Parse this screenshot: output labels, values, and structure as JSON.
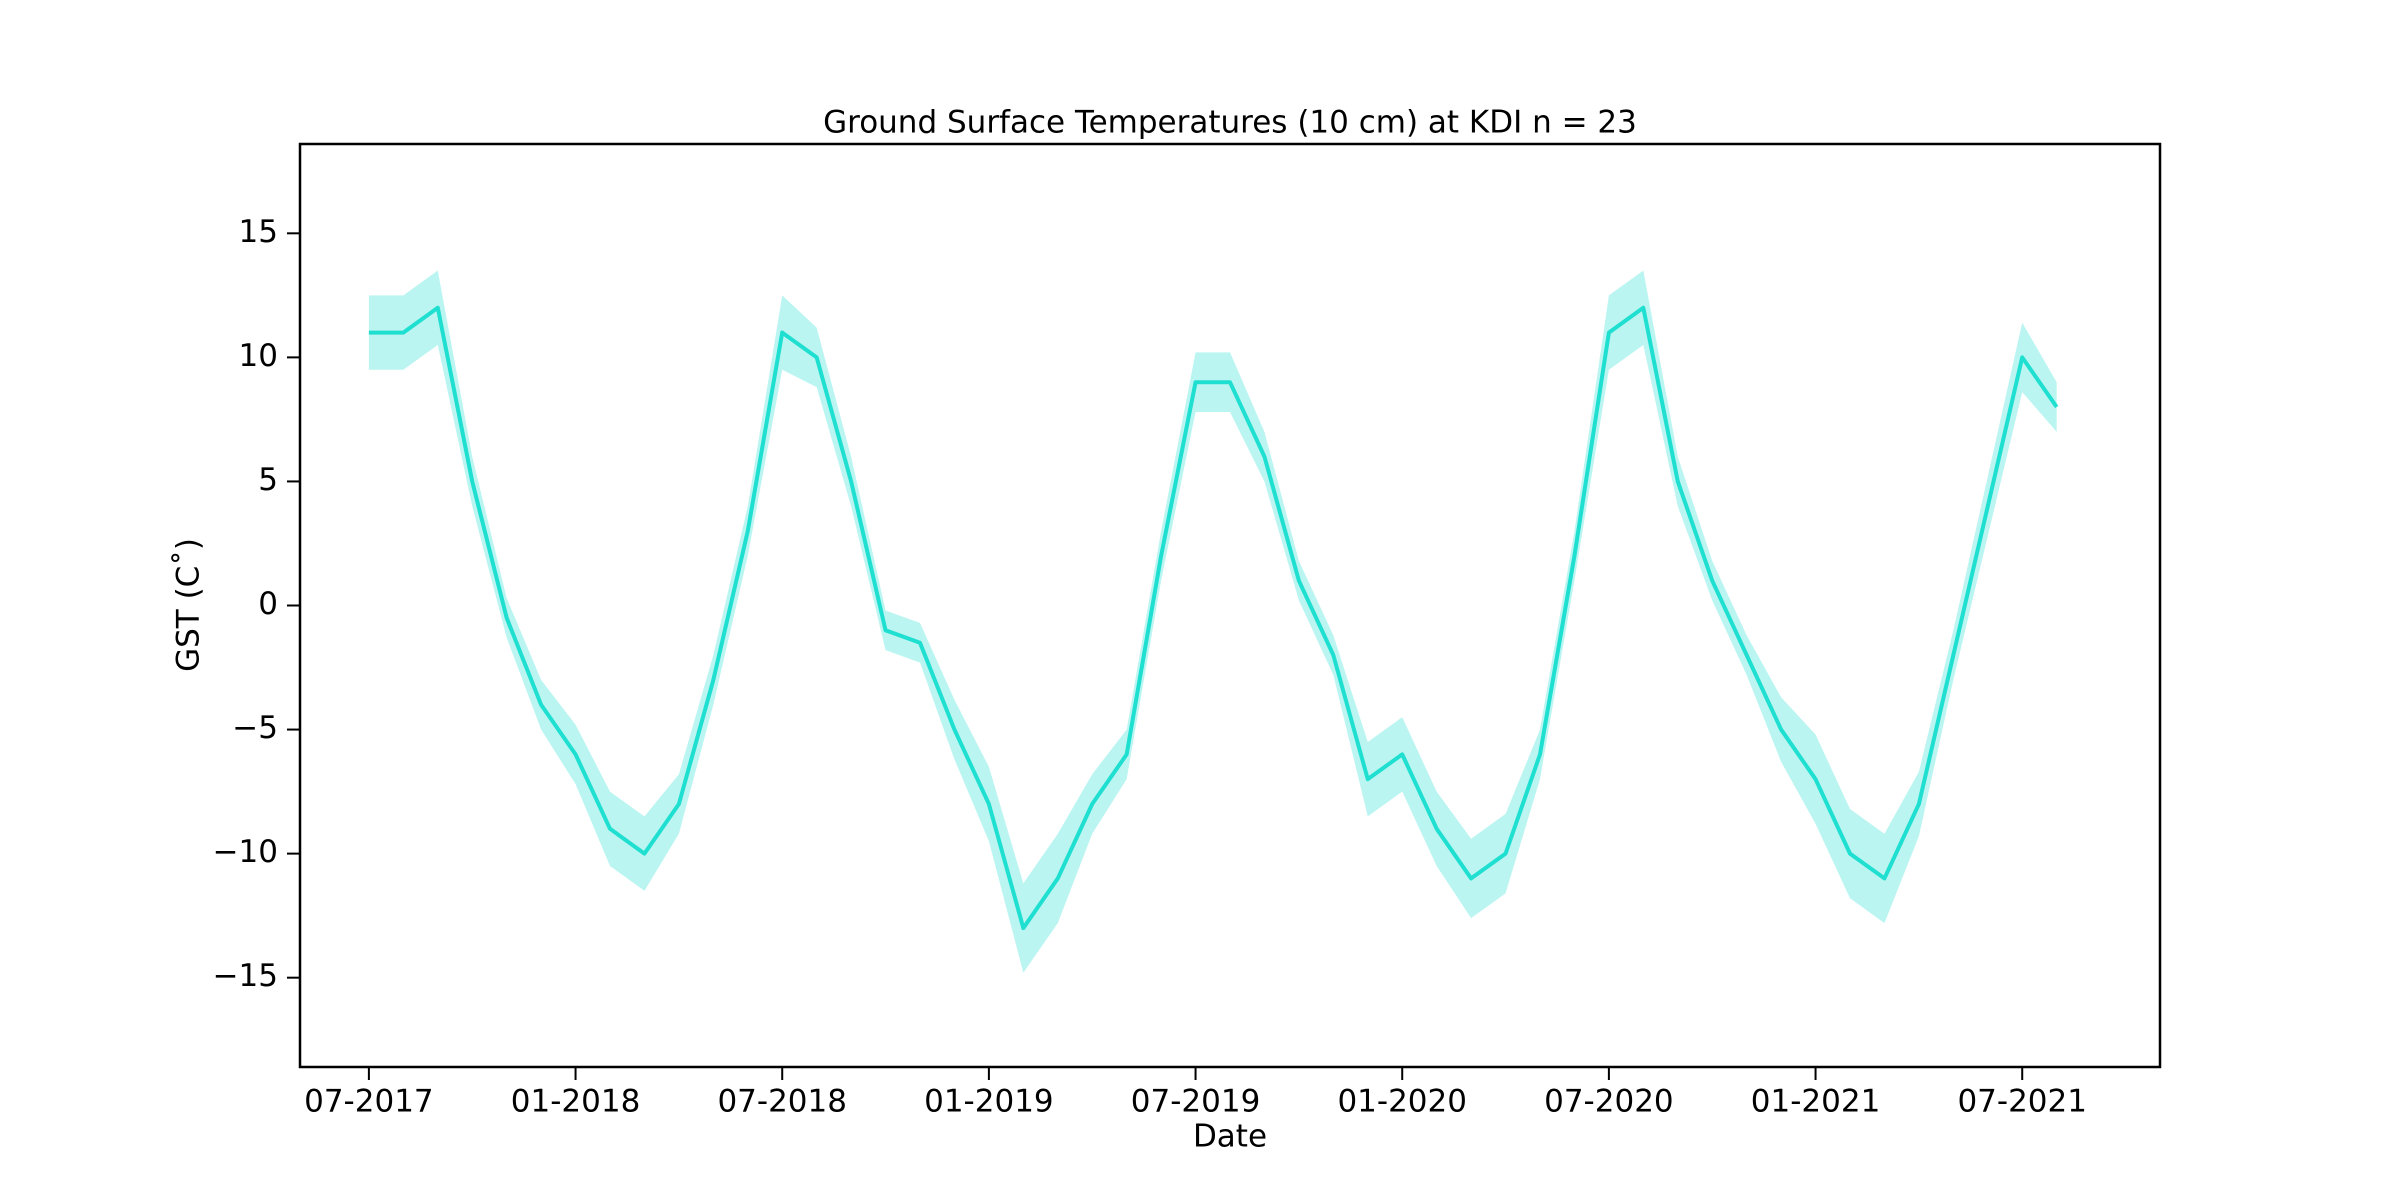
{
  "chart_data": {
    "type": "line",
    "title": "Ground Surface Temperatures (10 cm) at KDI n = 23",
    "xlabel": "Date",
    "ylabel": "GST (C˚)",
    "x": [
      "2017-07",
      "2017-08",
      "2017-09",
      "2017-10",
      "2017-11",
      "2017-12",
      "2018-01",
      "2018-02",
      "2018-03",
      "2018-04",
      "2018-05",
      "2018-06",
      "2018-07",
      "2018-08",
      "2018-09",
      "2018-10",
      "2018-11",
      "2018-12",
      "2019-01",
      "2019-02",
      "2019-03",
      "2019-04",
      "2019-05",
      "2019-06",
      "2019-07",
      "2019-08",
      "2019-09",
      "2019-10",
      "2019-11",
      "2019-12",
      "2020-01",
      "2020-02",
      "2020-03",
      "2020-04",
      "2020-05",
      "2020-06",
      "2020-07",
      "2020-08",
      "2020-09",
      "2020-10",
      "2020-11",
      "2020-12",
      "2021-01",
      "2021-02",
      "2021-03",
      "2021-04",
      "2021-05",
      "2021-06",
      "2021-07",
      "2021-08"
    ],
    "series": [
      {
        "color": "#1fdfd0",
        "values": [
          11,
          11,
          12,
          5,
          -0.5,
          -4,
          -6,
          -9,
          -10,
          -8,
          -3,
          3,
          11,
          10,
          5,
          -1,
          -1.5,
          -5,
          -8,
          -13,
          -11,
          -8,
          -6,
          2,
          9,
          9,
          6,
          1,
          -2,
          -7,
          -6,
          -9,
          -11,
          -10,
          -6,
          2,
          11,
          12,
          5,
          1,
          -2,
          -5,
          -7,
          -10,
          -11,
          -8,
          -2,
          4,
          10,
          8
        ],
        "lower": [
          9.5,
          9.5,
          10.5,
          4,
          -1.3,
          -5,
          -7.2,
          -10.5,
          -11.5,
          -9.2,
          -4,
          2,
          9.5,
          8.8,
          4,
          -1.8,
          -2.3,
          -6.2,
          -9.5,
          -14.8,
          -12.8,
          -9.2,
          -7,
          1,
          7.8,
          7.8,
          5,
          0.2,
          -2.8,
          -8.5,
          -7.5,
          -10.5,
          -12.6,
          -11.6,
          -7,
          1,
          9.5,
          10.5,
          4,
          0.2,
          -2.8,
          -6.3,
          -8.8,
          -11.8,
          -12.8,
          -9.3,
          -3,
          2.8,
          8.6,
          7
        ],
        "upper": [
          12.5,
          12.5,
          13.5,
          6,
          0.3,
          -3,
          -4.8,
          -7.5,
          -8.5,
          -6.8,
          -2,
          4,
          12.5,
          11.2,
          6,
          -0.2,
          -0.7,
          -3.8,
          -6.5,
          -11.2,
          -9.2,
          -6.8,
          -5,
          3,
          10.2,
          10.2,
          7,
          1.8,
          -1.2,
          -5.5,
          -4.5,
          -7.5,
          -9.4,
          -8.4,
          -5,
          3,
          12.5,
          13.5,
          6,
          1.8,
          -1.2,
          -3.7,
          -5.2,
          -8.2,
          -9.2,
          -6.7,
          -1,
          5.2,
          11.4,
          9
        ]
      }
    ],
    "xlim": [
      "2017-05",
      "2021-11"
    ],
    "xticks": [
      {
        "value": "2017-07",
        "label": "07-2017"
      },
      {
        "value": "2018-01",
        "label": "01-2018"
      },
      {
        "value": "2018-07",
        "label": "07-2018"
      },
      {
        "value": "2019-01",
        "label": "01-2019"
      },
      {
        "value": "2019-07",
        "label": "07-2019"
      },
      {
        "value": "2020-01",
        "label": "01-2020"
      },
      {
        "value": "2020-07",
        "label": "07-2020"
      },
      {
        "value": "2021-01",
        "label": "01-2021"
      },
      {
        "value": "2021-07",
        "label": "07-2021"
      }
    ],
    "ylim": [
      -18.6,
      18.6
    ],
    "yticks": [
      {
        "value": -15,
        "label": "−15"
      },
      {
        "value": -10,
        "label": "−10"
      },
      {
        "value": -5,
        "label": "−5"
      },
      0,
      5,
      10,
      15
    ],
    "grid": false
  }
}
